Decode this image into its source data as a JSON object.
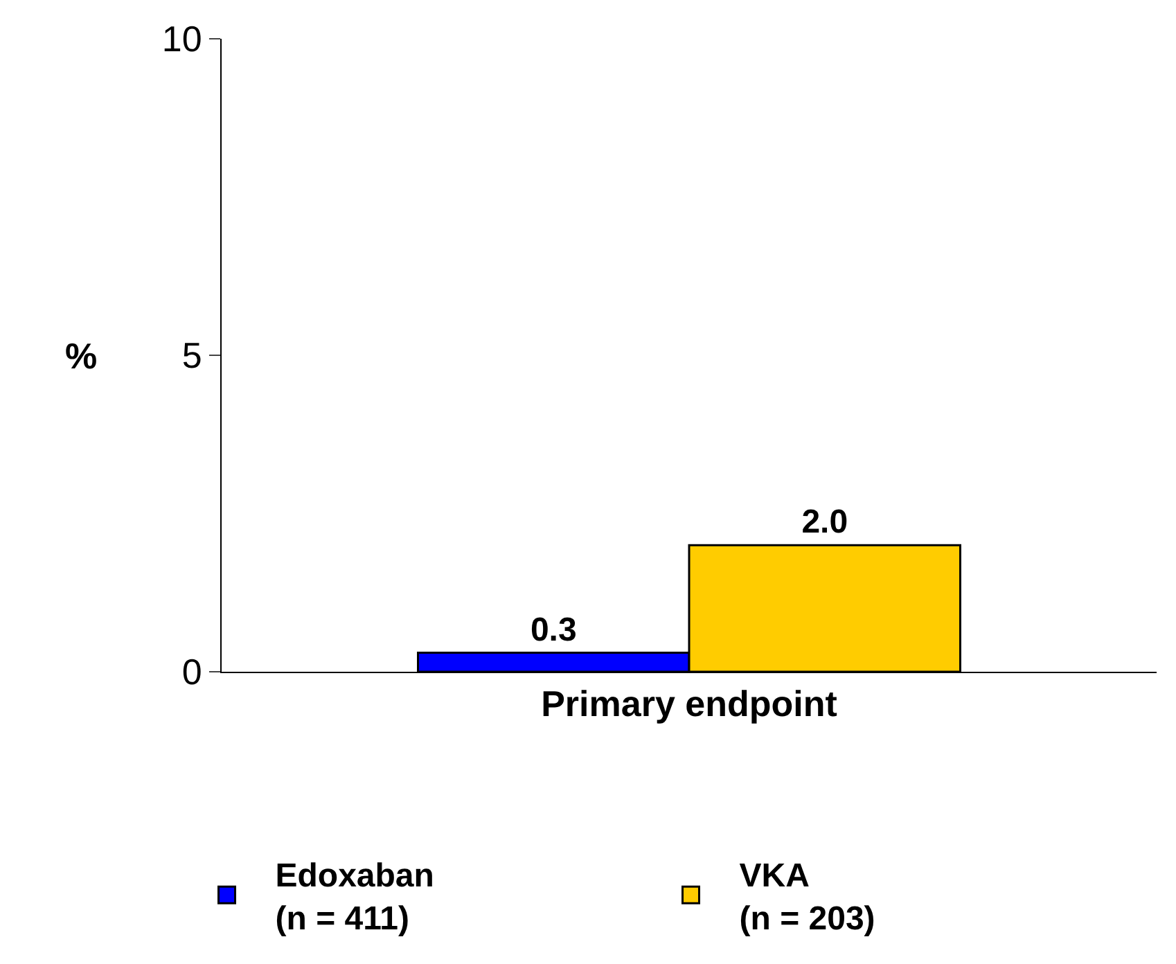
{
  "chart_data": {
    "type": "bar",
    "ylabel": "%",
    "categories": [
      "Primary endpoint"
    ],
    "series": [
      {
        "name": "Edoxaban\n(n = 411)",
        "color": "#0000ff",
        "values": [
          0.3
        ],
        "value_labels": [
          "0.3"
        ]
      },
      {
        "name": "VKA\n(n = 203)",
        "color": "#ffcc00",
        "values": [
          2.0
        ],
        "value_labels": [
          "2.0"
        ]
      }
    ],
    "ylim": [
      0,
      10
    ],
    "yticks": [
      0,
      5,
      10
    ],
    "legend": "bottom"
  }
}
